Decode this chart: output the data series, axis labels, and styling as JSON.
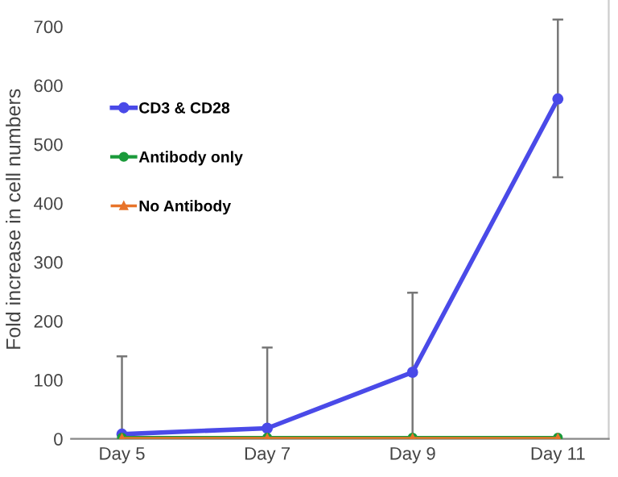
{
  "chart_data": {
    "type": "line",
    "ylabel": "Fold increase in cell numbers",
    "categories": [
      "Day 5",
      "Day 7",
      "Day 9",
      "Day 11"
    ],
    "series": [
      {
        "name": "CD3 & CD28",
        "color": "#4a4ae8",
        "values": [
          8,
          18,
          113,
          577
        ],
        "marker": "circle",
        "errors": [
          [
            0,
            140
          ],
          [
            0,
            155
          ],
          [
            0,
            248
          ],
          [
            444,
            712
          ]
        ]
      },
      {
        "name": "Antibody only",
        "color": "#1a9a3a",
        "values": [
          2,
          2,
          2,
          2
        ],
        "marker": "circle"
      },
      {
        "name": "No Antibody",
        "color": "#e8742a",
        "values": [
          1,
          1,
          1,
          1
        ],
        "marker": "triangle"
      }
    ],
    "ylim": [
      0,
      745
    ],
    "yticks": [
      0,
      100,
      200,
      300,
      400,
      500,
      600,
      700
    ],
    "grid": false,
    "legend": "top left"
  }
}
